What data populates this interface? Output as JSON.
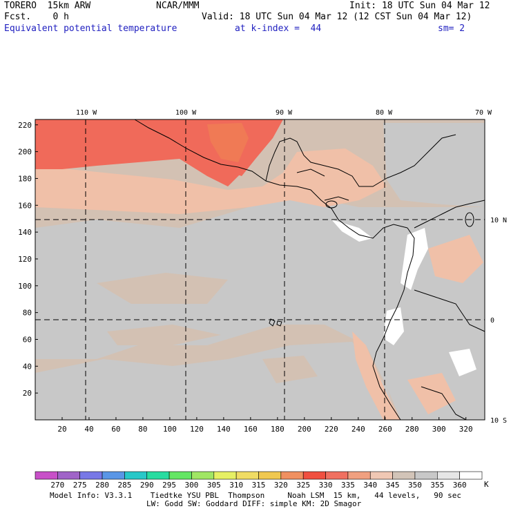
{
  "header": {
    "model": "TORERO  15km ARW",
    "org": "NCAR/MMM",
    "init": "Init: 18 UTC Sun 04 Mar 12",
    "fcst": "Fcst.    0 h",
    "valid": "Valid: 18 UTC Sun 04 Mar 12 (12 CST Sun 04 Mar 12)",
    "field": "Equivalent potential temperature",
    "level": "at k-index =  44",
    "smooth": "sm= 2"
  },
  "map": {
    "lon_labels": [
      "110 W",
      "100 W",
      "90 W",
      "80 W",
      "70 W"
    ],
    "lat_labels": [
      "10 N",
      "0",
      "10 S"
    ],
    "y_ticks": [
      "220",
      "200",
      "180",
      "160",
      "140",
      "120",
      "100",
      "80",
      "60",
      "40",
      "20"
    ],
    "x_ticks": [
      "20",
      "40",
      "60",
      "80",
      "100",
      "120",
      "140",
      "160",
      "180",
      "200",
      "220",
      "240",
      "260",
      "280",
      "300",
      "320"
    ],
    "colors": {
      "background": "#d3c1b3",
      "cool": "#c8c8c8",
      "warm": "#f0c0a8",
      "hot": "#f06a5a",
      "hottest": "#f05040",
      "cold": "#ffffff"
    }
  },
  "colorbar": {
    "labels": [
      "270",
      "275",
      "280",
      "285",
      "290",
      "295",
      "300",
      "305",
      "310",
      "315",
      "320",
      "325",
      "330",
      "335",
      "340",
      "345",
      "350",
      "355",
      "360"
    ],
    "unit": "K",
    "colors": [
      "#c850c8",
      "#a064c8",
      "#7878e6",
      "#5a96e6",
      "#28c8c8",
      "#28dca0",
      "#64e664",
      "#a0e664",
      "#e6f064",
      "#f0dc64",
      "#f0c850",
      "#f09060",
      "#f05040",
      "#f07060",
      "#f0a080",
      "#f0c8b4",
      "#d2c4b8",
      "#c8c8c8",
      "#e6e6e6",
      "#ffffff"
    ]
  },
  "footer": {
    "line1": "Model Info: V3.3.1    Tiedtke YSU PBL  Thompson     Noah LSM  15 km,   44 levels,   90 sec",
    "line2": "LW: Godd SW: Goddard DIFF: simple KM: 2D Smagor"
  }
}
